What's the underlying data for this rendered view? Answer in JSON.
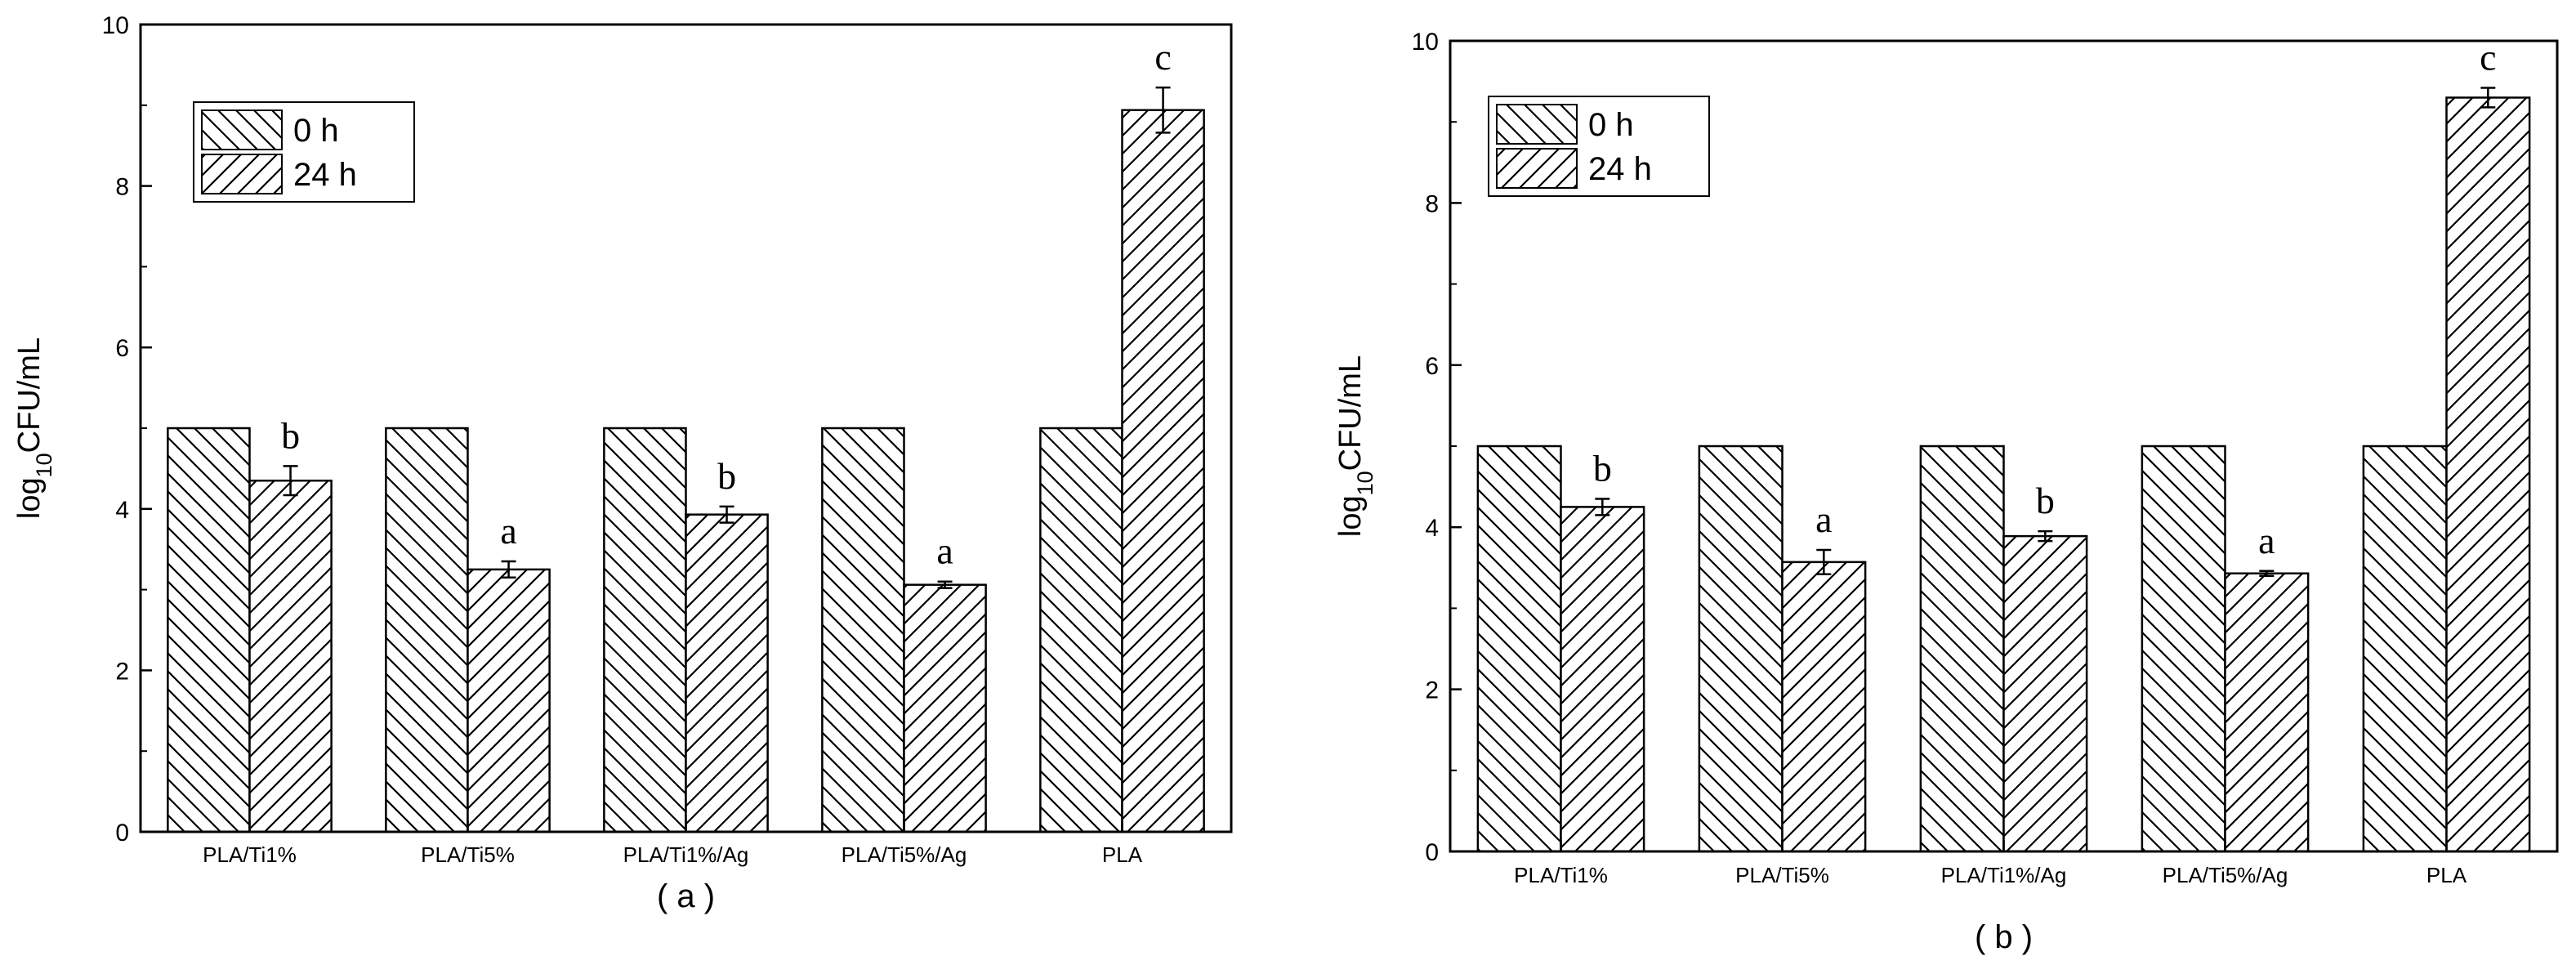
{
  "chart_data": [
    {
      "type": "bar",
      "panel_label": "( a )",
      "ylabel_base": "log",
      "ylabel_sub": "10",
      "ylabel_rest": "CFU/mL",
      "ylim": [
        0,
        10
      ],
      "yticks": [
        "0",
        "2",
        "4",
        "6",
        "8",
        "10"
      ],
      "categories": [
        "PLA/Ti1%",
        "PLA/Ti5%",
        "PLA/Ti1%/Ag",
        "PLA/Ti5%/Ag",
        "PLA"
      ],
      "series": [
        {
          "name": "0 h",
          "values": [
            5.0,
            5.0,
            5.0,
            5.0,
            5.0
          ],
          "errors": [
            0,
            0,
            0,
            0,
            0
          ]
        },
        {
          "name": "24 h",
          "values": [
            4.35,
            3.25,
            3.93,
            3.06,
            8.94
          ],
          "errors": [
            0.18,
            0.1,
            0.1,
            0.04,
            0.28
          ]
        }
      ],
      "significance": [
        "b",
        "a",
        "b",
        "a",
        "c"
      ],
      "legend_position": "top-left",
      "grid": false
    },
    {
      "type": "bar",
      "panel_label": "( b )",
      "ylabel_base": "log",
      "ylabel_sub": "10",
      "ylabel_rest": "CFU/mL",
      "ylim": [
        0,
        10
      ],
      "yticks": [
        "0",
        "2",
        "4",
        "6",
        "8",
        "10"
      ],
      "categories": [
        "PLA/Ti1%",
        "PLA/Ti5%",
        "PLA/Ti1%/Ag",
        "PLA/Ti5%/Ag",
        "PLA"
      ],
      "series": [
        {
          "name": "0 h",
          "values": [
            5.0,
            5.0,
            5.0,
            5.0,
            5.0
          ],
          "errors": [
            0,
            0,
            0,
            0,
            0
          ]
        },
        {
          "name": "24 h",
          "values": [
            4.25,
            3.57,
            3.89,
            3.43,
            9.3
          ],
          "errors": [
            0.1,
            0.15,
            0.06,
            0.03,
            0.12
          ]
        }
      ],
      "significance": [
        "b",
        "a",
        "b",
        "a",
        "c"
      ],
      "legend_position": "top-left",
      "grid": false
    }
  ]
}
